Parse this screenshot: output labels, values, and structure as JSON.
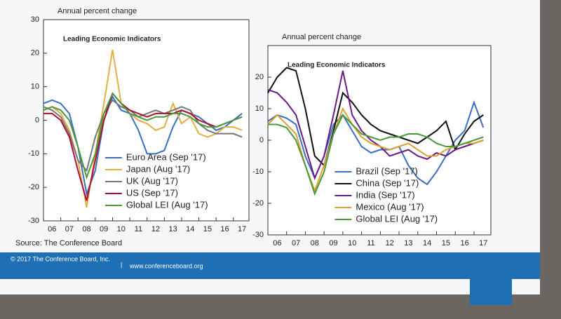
{
  "chart_data": [
    {
      "type": "line",
      "title": "Leading Economic Indicators",
      "y_label": "Annual percent change",
      "source": "Source: The Conference Board",
      "x": [
        6,
        6.5,
        7,
        7.5,
        8,
        8.5,
        9,
        9.5,
        10,
        10.5,
        11,
        11.5,
        12,
        12.5,
        13,
        13.5,
        14,
        14.5,
        15,
        15.5,
        16,
        16.5,
        17,
        17.5
      ],
      "xlim": [
        6,
        17.9
      ],
      "xticks": [
        {
          "value": 6,
          "label": "06"
        },
        {
          "value": 7,
          "label": "07"
        },
        {
          "value": 8,
          "label": "08"
        },
        {
          "value": 9,
          "label": "09"
        },
        10,
        11,
        12,
        13,
        14,
        15,
        16,
        17
      ],
      "ylim": [
        -30,
        30
      ],
      "yticks": [
        -30,
        -20,
        -10,
        0,
        10,
        20,
        30
      ],
      "legend": "lower center",
      "series": [
        {
          "name": "Euro Area (Sep '17)",
          "color": "#3a6fc4",
          "values": [
            5,
            6,
            5,
            2,
            -8,
            -22,
            -15,
            0,
            7,
            3,
            2,
            -3,
            -10,
            -10,
            -9,
            -2,
            3,
            2,
            1,
            -1,
            -3,
            -2,
            0,
            2
          ]
        },
        {
          "name": "Japan (Aug '17)",
          "color": "#e0b040",
          "values": [
            3,
            4,
            2,
            -3,
            -12,
            -26,
            -10,
            5,
            21,
            5,
            2,
            0,
            -1,
            -3,
            -2,
            5,
            -1,
            1,
            -4,
            -5,
            -4,
            -2,
            -2,
            -3
          ]
        },
        {
          "name": "UK (Aug '17)",
          "color": "#767676",
          "values": [
            4,
            3,
            1,
            -4,
            -12,
            -15,
            -5,
            2,
            6,
            4,
            3,
            1,
            2,
            3,
            2,
            3,
            4,
            3,
            -1,
            -3,
            -4,
            -4,
            -4,
            -5
          ]
        },
        {
          "name": "US (Sep '17)",
          "color": "#b01030",
          "values": [
            2,
            2,
            0,
            -5,
            -15,
            -24,
            -12,
            0,
            8,
            5,
            3,
            2,
            1,
            2,
            2,
            2,
            3,
            2,
            0,
            -1,
            -2,
            -1,
            0,
            1
          ]
        },
        {
          "name": "Global LEI (Aug '17)",
          "color": "#4a9a3a",
          "values": [
            3,
            4,
            3,
            0,
            -8,
            -17,
            -10,
            2,
            8,
            5,
            2,
            1,
            0,
            1,
            1,
            2,
            2,
            1,
            -1,
            -2,
            -2,
            -1,
            0,
            1
          ]
        }
      ]
    },
    {
      "type": "line",
      "title": "Leading Economic Indicators",
      "y_label": "Annual percent change",
      "x": [
        6,
        6.5,
        7,
        7.5,
        8,
        8.5,
        9,
        9.5,
        10,
        10.5,
        11,
        11.5,
        12,
        12.5,
        13,
        13.5,
        14,
        14.5,
        15,
        15.5,
        16,
        16.5,
        17,
        17.5
      ],
      "xlim": [
        6,
        17.9
      ],
      "xticks": [
        {
          "value": 6,
          "label": "06"
        },
        {
          "value": 7,
          "label": "07"
        },
        {
          "value": 8,
          "label": "08"
        },
        {
          "value": 9,
          "label": "09"
        },
        10,
        11,
        12,
        13,
        14,
        15,
        16,
        17
      ],
      "ylim": [
        -30,
        30
      ],
      "yticks": [
        -30,
        -20,
        -10,
        0,
        10,
        20
      ],
      "legend": "lower center",
      "series": [
        {
          "name": "Brazil (Sep '17)",
          "color": "#3a6fc4",
          "values": [
            6,
            8,
            7,
            5,
            -5,
            -12,
            -5,
            5,
            8,
            3,
            -2,
            -4,
            -3,
            -3,
            -2,
            -8,
            -12,
            -14,
            -10,
            -5,
            0,
            3,
            12,
            4
          ]
        },
        {
          "name": "China (Sep '17)",
          "color": "#111111",
          "values": [
            15,
            20,
            23,
            22,
            10,
            -5,
            -8,
            3,
            15,
            12,
            8,
            5,
            3,
            2,
            1,
            0,
            -1,
            1,
            3,
            6,
            -3,
            2,
            6,
            8
          ]
        },
        {
          "name": "India (Sep '17)",
          "color": "#6a1a8a",
          "values": [
            16,
            15,
            12,
            8,
            -2,
            -12,
            -5,
            8,
            22,
            8,
            3,
            0,
            -2,
            -5,
            -4,
            -3,
            -5,
            -6,
            -4,
            -5,
            -3,
            -2,
            -1,
            0
          ]
        },
        {
          "name": "Mexico (Aug '17)",
          "color": "#e0a030",
          "values": [
            5,
            8,
            5,
            2,
            -8,
            -16,
            -8,
            2,
            10,
            5,
            1,
            -1,
            -2,
            -3,
            -2,
            -1,
            -3,
            -5,
            -5,
            -3,
            -2,
            -1,
            -1,
            0
          ]
        },
        {
          "name": "Global LEI (Aug '17)",
          "color": "#4a9a3a",
          "values": [
            5,
            5,
            4,
            0,
            -8,
            -17,
            -10,
            2,
            8,
            5,
            2,
            1,
            0,
            1,
            1,
            2,
            2,
            1,
            -1,
            -2,
            -2,
            -1,
            0,
            1
          ]
        }
      ]
    }
  ],
  "footer": {
    "copyright": "© 2017 The Conference Board, Inc.",
    "separator": "|",
    "website": "www.conferenceboard.org"
  }
}
